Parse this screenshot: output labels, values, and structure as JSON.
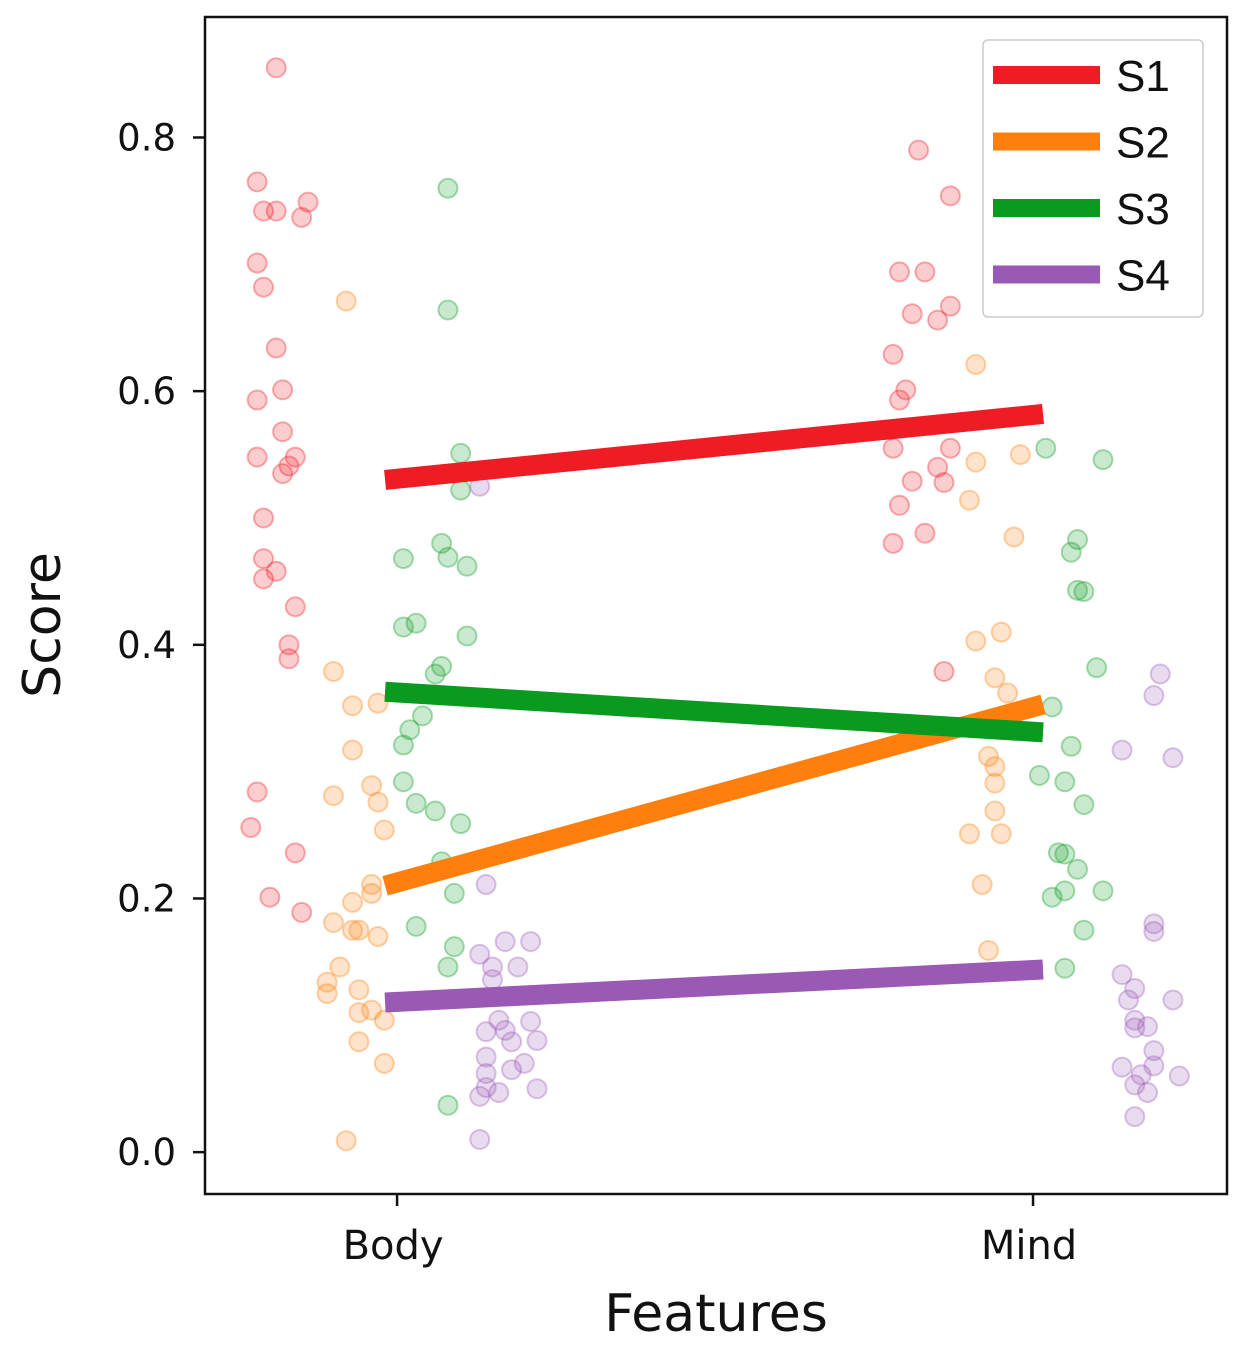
{
  "chart_data": {
    "type": "scatter",
    "title": "",
    "xlabel": "Features",
    "ylabel": "Score",
    "categories": [
      "Body",
      "Mind"
    ],
    "xlim": [
      -0.302,
      1.305
    ],
    "ylim": [
      -0.033,
      0.895
    ],
    "yticks": [
      0.0,
      0.2,
      0.4,
      0.6,
      0.8
    ],
    "ytick_labels": [
      "0.0",
      "0.2",
      "0.4",
      "0.6",
      "0.8"
    ],
    "grid": false,
    "legend_position": "top-right",
    "series": [
      {
        "name": "S1",
        "color": "#ee1c25",
        "line": [
          [
            0,
            0.53
          ],
          [
            1,
            0.582
          ]
        ],
        "points": [
          [
            -0.19,
            0.855
          ],
          [
            -0.22,
            0.765
          ],
          [
            -0.21,
            0.742
          ],
          [
            -0.19,
            0.742
          ],
          [
            -0.14,
            0.749
          ],
          [
            -0.15,
            0.737
          ],
          [
            -0.22,
            0.701
          ],
          [
            -0.21,
            0.682
          ],
          [
            -0.19,
            0.634
          ],
          [
            -0.18,
            0.601
          ],
          [
            -0.22,
            0.593
          ],
          [
            -0.18,
            0.568
          ],
          [
            -0.22,
            0.548
          ],
          [
            -0.16,
            0.548
          ],
          [
            -0.17,
            0.541
          ],
          [
            -0.18,
            0.535
          ],
          [
            -0.21,
            0.5
          ],
          [
            -0.21,
            0.468
          ],
          [
            -0.21,
            0.452
          ],
          [
            -0.19,
            0.458
          ],
          [
            -0.16,
            0.43
          ],
          [
            -0.17,
            0.4
          ],
          [
            -0.17,
            0.389
          ],
          [
            -0.22,
            0.284
          ],
          [
            -0.23,
            0.256
          ],
          [
            -0.16,
            0.236
          ],
          [
            -0.2,
            0.201
          ],
          [
            -0.15,
            0.189
          ],
          [
            0.82,
            0.79
          ],
          [
            0.87,
            0.754
          ],
          [
            0.79,
            0.694
          ],
          [
            0.83,
            0.694
          ],
          [
            0.81,
            0.661
          ],
          [
            0.85,
            0.656
          ],
          [
            0.87,
            0.667
          ],
          [
            0.78,
            0.629
          ],
          [
            0.8,
            0.601
          ],
          [
            0.79,
            0.593
          ],
          [
            0.78,
            0.555
          ],
          [
            0.87,
            0.555
          ],
          [
            0.85,
            0.54
          ],
          [
            0.81,
            0.529
          ],
          [
            0.86,
            0.528
          ],
          [
            0.79,
            0.51
          ],
          [
            0.83,
            0.488
          ],
          [
            0.78,
            0.48
          ],
          [
            0.86,
            0.379
          ]
        ]
      },
      {
        "name": "S2",
        "color": "#ff7f0e",
        "line": [
          [
            0,
            0.21
          ],
          [
            1,
            0.353
          ]
        ],
        "points": [
          [
            -0.08,
            0.671
          ],
          [
            -0.1,
            0.379
          ],
          [
            -0.07,
            0.352
          ],
          [
            -0.03,
            0.354
          ],
          [
            -0.07,
            0.317
          ],
          [
            -0.1,
            0.281
          ],
          [
            -0.04,
            0.289
          ],
          [
            -0.03,
            0.276
          ],
          [
            -0.02,
            0.254
          ],
          [
            -0.04,
            0.211
          ],
          [
            -0.04,
            0.204
          ],
          [
            -0.07,
            0.197
          ],
          [
            -0.1,
            0.181
          ],
          [
            -0.07,
            0.175
          ],
          [
            -0.06,
            0.175
          ],
          [
            -0.03,
            0.17
          ],
          [
            -0.09,
            0.146
          ],
          [
            -0.11,
            0.134
          ],
          [
            -0.11,
            0.125
          ],
          [
            -0.06,
            0.128
          ],
          [
            -0.06,
            0.11
          ],
          [
            -0.04,
            0.112
          ],
          [
            -0.02,
            0.104
          ],
          [
            -0.06,
            0.087
          ],
          [
            -0.02,
            0.07
          ],
          [
            -0.08,
            0.009
          ],
          [
            0.91,
            0.621
          ],
          [
            0.91,
            0.544
          ],
          [
            0.98,
            0.55
          ],
          [
            0.9,
            0.514
          ],
          [
            0.97,
            0.485
          ],
          [
            0.91,
            0.403
          ],
          [
            0.95,
            0.41
          ],
          [
            0.94,
            0.374
          ],
          [
            0.96,
            0.362
          ],
          [
            0.93,
            0.312
          ],
          [
            0.94,
            0.304
          ],
          [
            0.94,
            0.291
          ],
          [
            0.94,
            0.269
          ],
          [
            0.9,
            0.251
          ],
          [
            0.95,
            0.251
          ],
          [
            0.92,
            0.211
          ],
          [
            0.93,
            0.159
          ]
        ]
      },
      {
        "name": "S3",
        "color": "#0a9a20",
        "line": [
          [
            0,
            0.363
          ],
          [
            1,
            0.331
          ]
        ],
        "points": [
          [
            0.08,
            0.76
          ],
          [
            0.08,
            0.664
          ],
          [
            0.1,
            0.551
          ],
          [
            0.1,
            0.522
          ],
          [
            0.01,
            0.468
          ],
          [
            0.07,
            0.48
          ],
          [
            0.08,
            0.469
          ],
          [
            0.11,
            0.462
          ],
          [
            0.03,
            0.417
          ],
          [
            0.01,
            0.414
          ],
          [
            0.11,
            0.407
          ],
          [
            0.07,
            0.383
          ],
          [
            0.06,
            0.377
          ],
          [
            0.04,
            0.344
          ],
          [
            0.02,
            0.333
          ],
          [
            0.01,
            0.321
          ],
          [
            0.01,
            0.292
          ],
          [
            0.03,
            0.275
          ],
          [
            0.06,
            0.269
          ],
          [
            0.1,
            0.259
          ],
          [
            0.07,
            0.229
          ],
          [
            0.09,
            0.204
          ],
          [
            0.03,
            0.178
          ],
          [
            0.09,
            0.162
          ],
          [
            0.08,
            0.146
          ],
          [
            0.08,
            0.037
          ],
          [
            1.02,
            0.555
          ],
          [
            1.11,
            0.546
          ],
          [
            1.07,
            0.483
          ],
          [
            1.06,
            0.473
          ],
          [
            1.07,
            0.443
          ],
          [
            1.08,
            0.442
          ],
          [
            1.1,
            0.382
          ],
          [
            1.03,
            0.351
          ],
          [
            1.06,
            0.32
          ],
          [
            1.01,
            0.297
          ],
          [
            1.05,
            0.292
          ],
          [
            1.08,
            0.274
          ],
          [
            1.04,
            0.236
          ],
          [
            1.05,
            0.235
          ],
          [
            1.07,
            0.223
          ],
          [
            1.05,
            0.206
          ],
          [
            1.03,
            0.201
          ],
          [
            1.11,
            0.206
          ],
          [
            1.08,
            0.175
          ],
          [
            1.05,
            0.145
          ]
        ]
      },
      {
        "name": "S4",
        "color": "#9b59b6",
        "line": [
          [
            0,
            0.118
          ],
          [
            1,
            0.144
          ]
        ],
        "points": [
          [
            0.13,
            0.525
          ],
          [
            0.14,
            0.211
          ],
          [
            0.13,
            0.156
          ],
          [
            0.15,
            0.146
          ],
          [
            0.15,
            0.136
          ],
          [
            0.17,
            0.166
          ],
          [
            0.21,
            0.166
          ],
          [
            0.19,
            0.146
          ],
          [
            0.16,
            0.104
          ],
          [
            0.14,
            0.095
          ],
          [
            0.17,
            0.096
          ],
          [
            0.21,
            0.103
          ],
          [
            0.18,
            0.087
          ],
          [
            0.22,
            0.088
          ],
          [
            0.14,
            0.075
          ],
          [
            0.2,
            0.07
          ],
          [
            0.14,
            0.062
          ],
          [
            0.18,
            0.065
          ],
          [
            0.14,
            0.051
          ],
          [
            0.16,
            0.047
          ],
          [
            0.13,
            0.044
          ],
          [
            0.22,
            0.05
          ],
          [
            0.13,
            0.01
          ],
          [
            1.2,
            0.377
          ],
          [
            1.19,
            0.36
          ],
          [
            1.14,
            0.317
          ],
          [
            1.22,
            0.311
          ],
          [
            1.19,
            0.18
          ],
          [
            1.19,
            0.174
          ],
          [
            1.14,
            0.14
          ],
          [
            1.16,
            0.129
          ],
          [
            1.15,
            0.12
          ],
          [
            1.22,
            0.12
          ],
          [
            1.16,
            0.104
          ],
          [
            1.18,
            0.099
          ],
          [
            1.16,
            0.098
          ],
          [
            1.19,
            0.08
          ],
          [
            1.14,
            0.067
          ],
          [
            1.19,
            0.068
          ],
          [
            1.17,
            0.061
          ],
          [
            1.23,
            0.06
          ],
          [
            1.16,
            0.053
          ],
          [
            1.18,
            0.047
          ],
          [
            1.16,
            0.028
          ]
        ]
      }
    ]
  }
}
